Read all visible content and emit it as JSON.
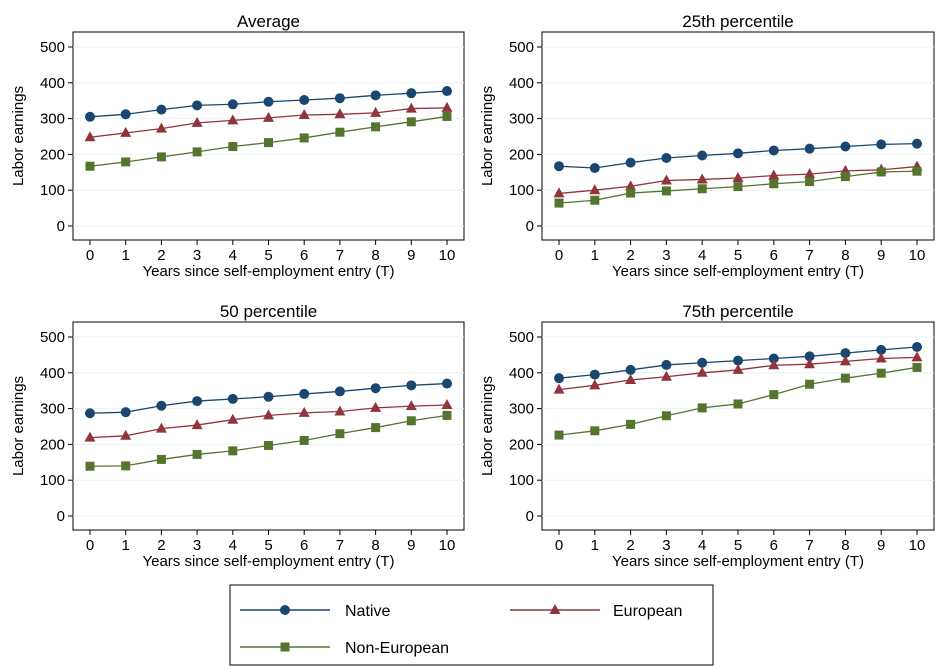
{
  "chart_data": [
    {
      "type": "line",
      "title": "Average",
      "xlabel": "Years since self-employment entry (T)",
      "ylabel": "Labor earnings",
      "x": [
        0,
        1,
        2,
        3,
        4,
        5,
        6,
        7,
        8,
        9,
        10
      ],
      "xticks": [
        "0",
        "1",
        "2",
        "3",
        "4",
        "5",
        "6",
        "7",
        "8",
        "9",
        "10"
      ],
      "yticks": [
        "0",
        "100",
        "200",
        "300",
        "400",
        "500"
      ],
      "ylim": [
        0,
        500
      ],
      "grid": true,
      "series": [
        {
          "name": "Native",
          "values": [
            305,
            312,
            325,
            337,
            340,
            347,
            352,
            357,
            365,
            371,
            377
          ]
        },
        {
          "name": "European",
          "values": [
            248,
            260,
            272,
            288,
            295,
            302,
            310,
            312,
            316,
            328,
            330
          ]
        },
        {
          "name": "Non-European",
          "values": [
            167,
            179,
            193,
            207,
            222,
            233,
            246,
            262,
            277,
            291,
            306
          ]
        }
      ]
    },
    {
      "type": "line",
      "title": "25th percentile",
      "xlabel": "Years since self-employment entry (T)",
      "ylabel": "Labor earnings",
      "x": [
        0,
        1,
        2,
        3,
        4,
        5,
        6,
        7,
        8,
        9,
        10
      ],
      "xticks": [
        "0",
        "1",
        "2",
        "3",
        "4",
        "5",
        "6",
        "7",
        "8",
        "9",
        "10"
      ],
      "yticks": [
        "0",
        "100",
        "200",
        "300",
        "400",
        "500"
      ],
      "ylim": [
        0,
        500
      ],
      "grid": true,
      "series": [
        {
          "name": "Native",
          "values": [
            167,
            162,
            177,
            190,
            197,
            203,
            211,
            216,
            222,
            228,
            230
          ]
        },
        {
          "name": "European",
          "values": [
            91,
            100,
            111,
            127,
            130,
            134,
            141,
            145,
            154,
            157,
            166
          ]
        },
        {
          "name": "Non-European",
          "values": [
            64,
            72,
            92,
            98,
            104,
            110,
            118,
            124,
            138,
            151,
            153
          ]
        }
      ]
    },
    {
      "type": "line",
      "title": "50 percentile",
      "xlabel": "Years since self-employment entry (T)",
      "ylabel": "Labor earnings",
      "x": [
        0,
        1,
        2,
        3,
        4,
        5,
        6,
        7,
        8,
        9,
        10
      ],
      "xticks": [
        "0",
        "1",
        "2",
        "3",
        "4",
        "5",
        "6",
        "7",
        "8",
        "9",
        "10"
      ],
      "yticks": [
        "0",
        "100",
        "200",
        "300",
        "400",
        "500"
      ],
      "ylim": [
        0,
        500
      ],
      "grid": true,
      "series": [
        {
          "name": "Native",
          "values": [
            287,
            290,
            308,
            321,
            327,
            333,
            341,
            348,
            357,
            365,
            370
          ]
        },
        {
          "name": "European",
          "values": [
            219,
            224,
            244,
            254,
            269,
            281,
            288,
            292,
            302,
            307,
            310
          ]
        },
        {
          "name": "Non-European",
          "values": [
            139,
            140,
            158,
            172,
            182,
            197,
            211,
            230,
            247,
            266,
            281
          ]
        }
      ]
    },
    {
      "type": "line",
      "title": "75th percentile",
      "xlabel": "Years since self-employment entry (T)",
      "ylabel": "Labor earnings",
      "x": [
        0,
        1,
        2,
        3,
        4,
        5,
        6,
        7,
        8,
        9,
        10
      ],
      "xticks": [
        "0",
        "1",
        "2",
        "3",
        "4",
        "5",
        "6",
        "7",
        "8",
        "9",
        "10"
      ],
      "yticks": [
        "0",
        "100",
        "200",
        "300",
        "400",
        "500"
      ],
      "ylim": [
        0,
        500
      ],
      "grid": true,
      "series": [
        {
          "name": "Native",
          "values": [
            385,
            395,
            408,
            422,
            428,
            434,
            440,
            446,
            455,
            464,
            472
          ]
        },
        {
          "name": "European",
          "values": [
            353,
            365,
            380,
            389,
            400,
            408,
            421,
            424,
            432,
            440,
            443
          ]
        },
        {
          "name": "Non-European",
          "values": [
            226,
            238,
            256,
            280,
            302,
            313,
            339,
            368,
            385,
            399,
            415
          ]
        }
      ]
    }
  ],
  "legend": {
    "placement": "bottom-center",
    "entries": [
      {
        "label": "Native",
        "color": "#1a476f",
        "marker": "circle"
      },
      {
        "label": "European",
        "color": "#90353b",
        "marker": "triangle"
      },
      {
        "label": "Non-European",
        "color": "#55752f",
        "marker": "square"
      }
    ]
  },
  "colors": {
    "Native": "#1a476f",
    "European": "#90353b",
    "Non-European": "#55752f",
    "grid": "#eaf2f3"
  }
}
